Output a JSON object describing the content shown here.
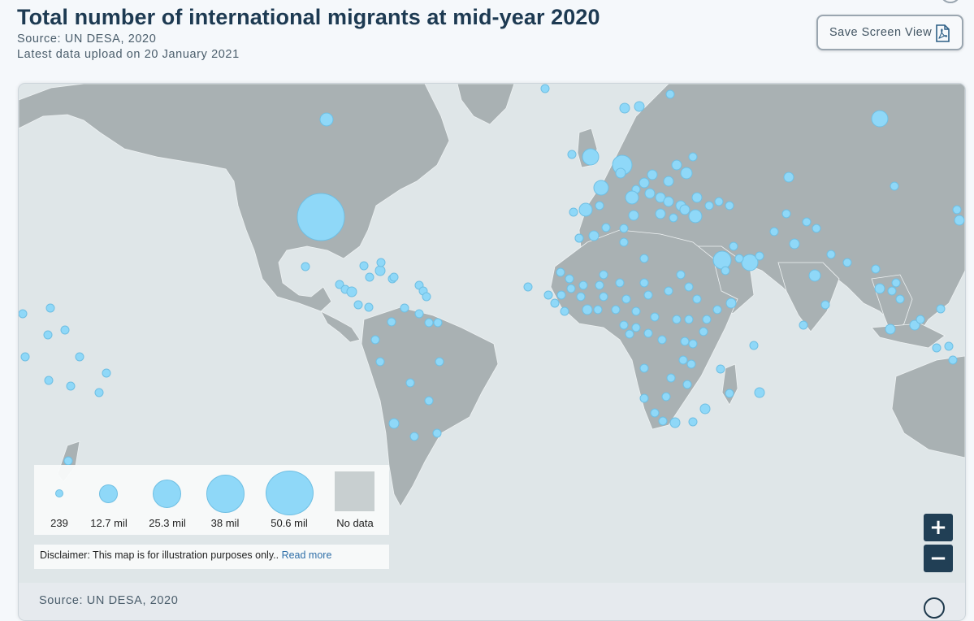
{
  "header": {
    "title": "Total number of international migrants at mid-year 2020",
    "source": "Source: UN DESA, 2020",
    "upload": "Latest data upload on 20 January 2021"
  },
  "toolbar": {
    "save_label": "Save Screen View",
    "save_icon": "pdf-file-icon"
  },
  "map": {
    "ocean_color": "#dfe6e8",
    "land_color": "#a9b1b3",
    "bubble_color": "#8fd8f8",
    "bubble_border": "#6fbfe3",
    "legend": {
      "items": [
        {
          "label": "239"
        },
        {
          "label": "12.7 mil"
        },
        {
          "label": "25.3 mil"
        },
        {
          "label": "38 mil"
        },
        {
          "label": "50.6 mil"
        }
      ],
      "no_data_label": "No data",
      "no_data_color": "#c8cfd0"
    },
    "disclaimer": {
      "text": "Disclaimer: This map is for illustration purposes only..",
      "link": "Read more"
    },
    "controls": {
      "zoom_in": "+",
      "zoom_out": "−"
    },
    "footer_source": "Source: UN DESA, 2020"
  }
}
